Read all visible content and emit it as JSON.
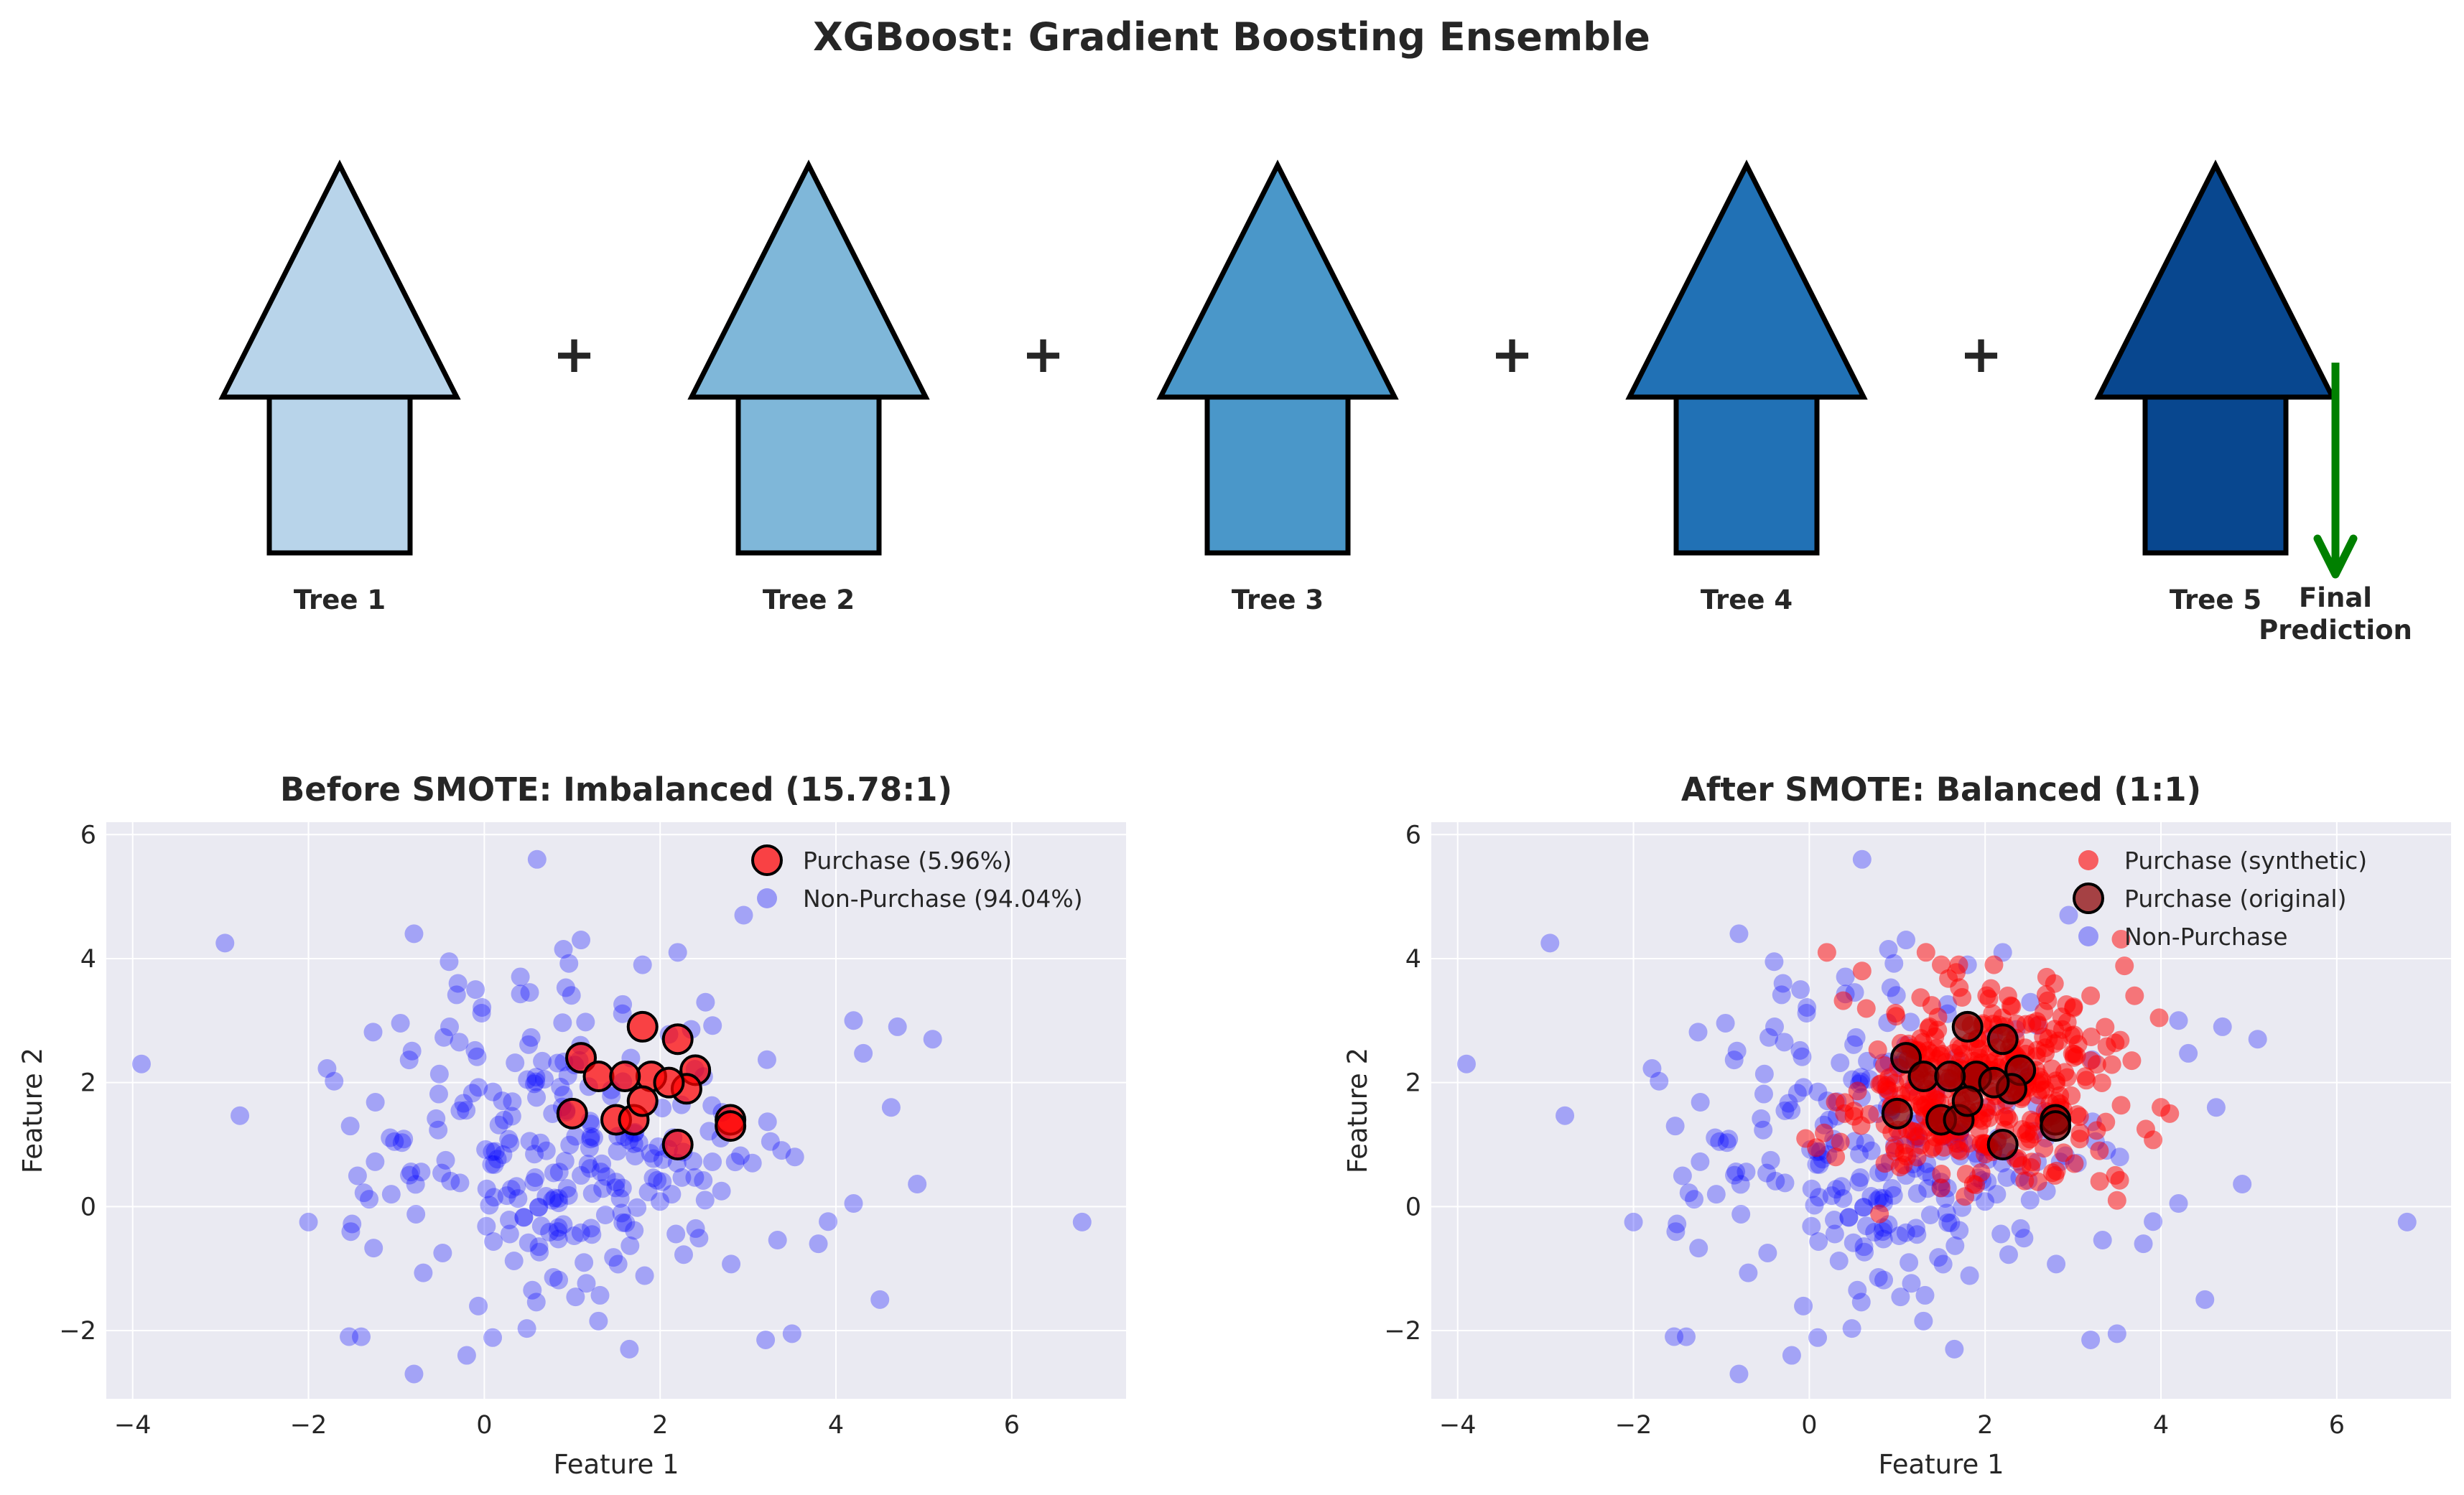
{
  "title": "XGBoost: Gradient Boosting Ensemble",
  "ensemble": {
    "trees": [
      {
        "label": "Tree 1",
        "color": "#b8d4ea"
      },
      {
        "label": "Tree 2",
        "color": "#7fb7d9"
      },
      {
        "label": "Tree 3",
        "color": "#4a97c9"
      },
      {
        "label": "Tree 4",
        "color": "#2171b5"
      },
      {
        "label": "Tree 5",
        "color": "#08478f"
      }
    ],
    "operator": "+",
    "final_label_line1": "Final",
    "final_label_line2": "Prediction",
    "arrow_color": "#008000"
  },
  "chart_data": [
    {
      "type": "scatter",
      "title": "Before SMOTE: Imbalanced (15.78:1)",
      "xlabel": "Feature 1",
      "ylabel": "Feature 2",
      "xlim": [
        -4.3,
        7.3
      ],
      "ylim": [
        -3.1,
        6.2
      ],
      "xticks": [
        -4,
        -2,
        0,
        2,
        4,
        6
      ],
      "yticks": [
        -2,
        0,
        2,
        4,
        6
      ],
      "grid": true,
      "legend_position": "top-right",
      "series": [
        {
          "name": "Purchase (5.96%)",
          "color": "#ff0000",
          "style": "large-outlined",
          "points": [
            [
              1.1,
              2.4
            ],
            [
              1.3,
              2.1
            ],
            [
              1.8,
              2.9
            ],
            [
              2.2,
              2.7
            ],
            [
              2.4,
              2.2
            ],
            [
              2.3,
              1.9
            ],
            [
              1.9,
              2.1
            ],
            [
              2.1,
              2.0
            ],
            [
              1.6,
              2.1
            ],
            [
              1.0,
              1.5
            ],
            [
              1.5,
              1.4
            ],
            [
              1.7,
              1.4
            ],
            [
              1.8,
              1.7
            ],
            [
              2.2,
              1.0
            ],
            [
              2.8,
              1.4
            ],
            [
              2.8,
              1.3
            ]
          ]
        },
        {
          "name": "Non-Purchase (94.04%)",
          "color": "#0000ff",
          "style": "small-translucent",
          "points": [
            [
              -3.9,
              2.3
            ],
            [
              -2.95,
              4.25
            ],
            [
              -0.8,
              4.4
            ],
            [
              0.6,
              5.6
            ],
            [
              -2.0,
              -0.25
            ],
            [
              -1.4,
              -2.1
            ],
            [
              -0.8,
              -2.7
            ],
            [
              -0.2,
              -2.4
            ],
            [
              1.65,
              -2.3
            ],
            [
              3.2,
              -2.15
            ],
            [
              3.5,
              -2.05
            ],
            [
              4.2,
              0.05
            ],
            [
              4.5,
              -1.5
            ],
            [
              5.1,
              2.7
            ],
            [
              6.8,
              -0.25
            ],
            [
              4.7,
              2.9
            ],
            [
              4.2,
              3.0
            ],
            [
              2.95,
              4.7
            ],
            [
              2.2,
              4.1
            ],
            [
              1.8,
              3.9
            ],
            [
              1.1,
              4.3
            ],
            [
              0.9,
              4.15
            ],
            [
              -0.4,
              3.95
            ],
            [
              -0.3,
              3.6
            ],
            [
              -0.1,
              3.5
            ],
            [
              3.8,
              -0.6
            ]
          ]
        }
      ]
    },
    {
      "type": "scatter",
      "title": "After SMOTE: Balanced (1:1)",
      "xlabel": "Feature 1",
      "ylabel": "Feature 2",
      "xlim": [
        -4.3,
        7.3
      ],
      "ylim": [
        -3.1,
        6.2
      ],
      "xticks": [
        -4,
        -2,
        0,
        2,
        4,
        6
      ],
      "yticks": [
        -2,
        0,
        2,
        4,
        6
      ],
      "grid": true,
      "legend_position": "top-right",
      "series": [
        {
          "name": "Purchase (synthetic)",
          "color": "#ff0000",
          "style": "small-translucent",
          "points": [
            [
              0.2,
              4.1
            ],
            [
              0.6,
              3.8
            ],
            [
              1.5,
              3.9
            ],
            [
              1.7,
              3.9
            ],
            [
              2.1,
              3.9
            ],
            [
              2.7,
              3.7
            ],
            [
              3.2,
              3.4
            ],
            [
              3.7,
              3.4
            ],
            [
              4.0,
              1.6
            ],
            [
              4.1,
              1.5
            ],
            [
              3.5,
              0.1
            ],
            [
              3.3,
              0.9
            ],
            [
              0.3,
              0.8
            ],
            [
              0.4,
              1.5
            ],
            [
              2.6,
              0.4
            ],
            [
              1.5,
              0.3
            ]
          ]
        },
        {
          "name": "Purchase (original)",
          "color": "#8b0000",
          "style": "large-outlined",
          "points": [
            [
              1.1,
              2.4
            ],
            [
              1.3,
              2.1
            ],
            [
              1.8,
              2.9
            ],
            [
              2.2,
              2.7
            ],
            [
              2.4,
              2.2
            ],
            [
              2.3,
              1.9
            ],
            [
              1.9,
              2.1
            ],
            [
              2.1,
              2.0
            ],
            [
              1.6,
              2.1
            ],
            [
              1.0,
              1.5
            ],
            [
              1.5,
              1.4
            ],
            [
              1.7,
              1.4
            ],
            [
              1.8,
              1.7
            ],
            [
              2.2,
              1.0
            ],
            [
              2.8,
              1.4
            ],
            [
              2.8,
              1.3
            ]
          ]
        },
        {
          "name": "Non-Purchase",
          "color": "#0000ff",
          "style": "small-translucent",
          "points": [
            [
              -3.9,
              2.3
            ],
            [
              -2.95,
              4.25
            ],
            [
              -0.8,
              4.4
            ],
            [
              0.6,
              5.6
            ],
            [
              -2.0,
              -0.25
            ],
            [
              -1.4,
              -2.1
            ],
            [
              -0.8,
              -2.7
            ],
            [
              -0.2,
              -2.4
            ],
            [
              1.65,
              -2.3
            ],
            [
              3.2,
              -2.15
            ],
            [
              3.5,
              -2.05
            ],
            [
              4.2,
              0.05
            ],
            [
              4.5,
              -1.5
            ],
            [
              5.1,
              2.7
            ],
            [
              6.8,
              -0.25
            ],
            [
              4.7,
              2.9
            ],
            [
              4.2,
              3.0
            ],
            [
              2.95,
              4.7
            ],
            [
              2.2,
              4.1
            ],
            [
              1.8,
              3.9
            ],
            [
              1.1,
              4.3
            ],
            [
              0.9,
              4.15
            ],
            [
              -0.4,
              3.95
            ],
            [
              -0.3,
              3.6
            ],
            [
              -0.1,
              3.5
            ],
            [
              3.8,
              -0.6
            ]
          ]
        }
      ]
    }
  ]
}
